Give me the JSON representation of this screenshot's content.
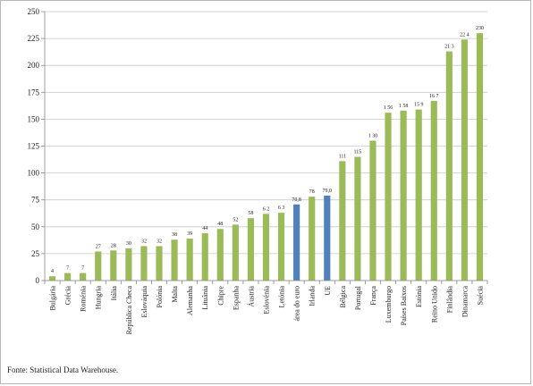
{
  "chart_data": {
    "type": "bar",
    "categories": [
      "Bulgária",
      "Grécia",
      "Roménia",
      "Hungria",
      "Itália",
      "República Checa",
      "Eslováquia",
      "Polónia",
      "Malta",
      "Alemanha",
      "Lituânia",
      "Chipre",
      "Espanha",
      "Áustria",
      "Eslovénia",
      "Letónia",
      "área do euro",
      "Irlanda",
      "UE",
      "Bélgica",
      "Portugal",
      "França",
      "Luxemburgo",
      "Países Baixos",
      "Estónia",
      "Reino Unido",
      "Finlândia",
      "Dinamarca",
      "Suécia"
    ],
    "values": [
      4,
      7,
      7,
      27,
      28,
      30,
      32,
      32,
      38,
      39,
      44,
      48,
      52,
      58,
      62,
      63,
      70.8,
      78,
      79.0,
      111,
      115,
      130,
      156,
      158,
      159,
      167,
      213,
      224,
      230
    ],
    "labels": [
      "4",
      "7",
      "7",
      "27",
      "28",
      "30",
      "32",
      "32",
      "38",
      "39",
      "44",
      "48",
      "52",
      "58",
      "6 2",
      "6 3",
      "70,8",
      "78",
      "79,0",
      "111",
      "115",
      "1 30",
      "1 56",
      "1 58",
      "15 9",
      "16 7",
      "21 3",
      "22 4",
      "230"
    ],
    "highlight": [
      "área do euro",
      "UE"
    ],
    "colors": {
      "default": "#9BBB59",
      "highlight": "#4F81BD",
      "grid": "#c8c8c8"
    },
    "ylim": [
      0,
      250
    ],
    "yticks": [
      0,
      25,
      50,
      75,
      100,
      125,
      150,
      175,
      200,
      225,
      250
    ],
    "grid": true,
    "title": "",
    "xlabel": "",
    "ylabel": ""
  },
  "source": "Fonte: Statistical Data Warehouse."
}
